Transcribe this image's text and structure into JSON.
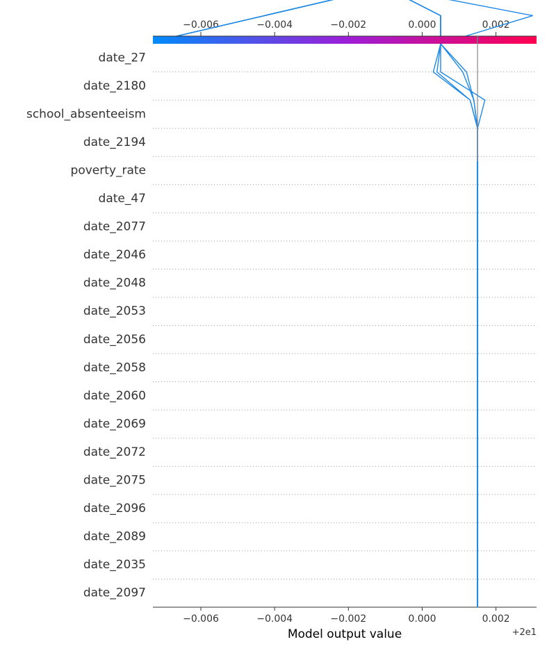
{
  "chart_data": {
    "type": "line",
    "title": "",
    "subtitle": "",
    "xlabel": "Model output value",
    "x_offset_label": "+2e1",
    "base_value": 0.0015,
    "xlim": [
      -0.0073,
      0.0031
    ],
    "x_ticks": [
      -0.006,
      -0.004,
      -0.002,
      0.0,
      0.002
    ],
    "x_tick_labels": [
      "−0.006",
      "−0.004",
      "−0.002",
      "0.000",
      "0.002"
    ],
    "colorbar": {
      "from": "#008bfb",
      "mid": "#9b1ed8",
      "to": "#ff0051"
    },
    "line_color": "#1e88e5",
    "grid": "dotted-rows",
    "features": [
      "date_27",
      "date_2180",
      "school_absenteeism",
      "date_2194",
      "poverty_rate",
      "date_47",
      "date_2077",
      "date_2046",
      "date_2048",
      "date_2053",
      "date_2056",
      "date_2058",
      "date_2060",
      "date_2069",
      "date_2072",
      "date_2075",
      "date_2096",
      "date_2089",
      "date_2035",
      "date_2097"
    ],
    "series": [
      {
        "values": [
          0.0015,
          0.0015,
          0.0015,
          0.0015,
          0.0015,
          0.0015,
          0.0015,
          0.0015,
          0.0015,
          0.0015,
          0.0015,
          0.0015,
          0.0015,
          0.0015,
          0.0015,
          0.0015,
          0.0015,
          0.0015,
          0.0017,
          0.0005,
          0.0005,
          0.003,
          -0.001,
          -0.0073
        ]
      },
      {
        "values": [
          0.0015,
          0.0015,
          0.0015,
          0.0015,
          0.0015,
          0.0015,
          0.0015,
          0.0015,
          0.0015,
          0.0015,
          0.0015,
          0.0015,
          0.0015,
          0.0015,
          0.0015,
          0.0015,
          0.0015,
          0.0015,
          0.0014,
          0.0011,
          0.0005,
          0.0005,
          -0.001,
          -0.0073
        ]
      },
      {
        "values": [
          0.0015,
          0.0015,
          0.0015,
          0.0015,
          0.0015,
          0.0015,
          0.0015,
          0.0015,
          0.0015,
          0.0015,
          0.0015,
          0.0015,
          0.0015,
          0.0015,
          0.0015,
          0.0015,
          0.0015,
          0.0015,
          0.0013,
          0.0003,
          0.0005,
          0.0005,
          -0.001,
          -0.0073
        ]
      },
      {
        "values": [
          0.0015,
          0.0015,
          0.0015,
          0.0015,
          0.0015,
          0.0015,
          0.0015,
          0.0015,
          0.0015,
          0.0015,
          0.0015,
          0.0015,
          0.0015,
          0.0015,
          0.0015,
          0.0015,
          0.0015,
          0.0015,
          0.0014,
          0.0012,
          0.0005,
          0.0005,
          -0.001,
          -0.0073
        ]
      },
      {
        "values": [
          0.0015,
          0.0015,
          0.0015,
          0.0015,
          0.0015,
          0.0015,
          0.0015,
          0.0015,
          0.0015,
          0.0015,
          0.0015,
          0.0015,
          0.0015,
          0.0015,
          0.0015,
          0.0015,
          0.0015,
          0.0015,
          0.0013,
          0.0004,
          0.0005,
          0.0005,
          -0.001,
          -0.0073
        ]
      }
    ]
  }
}
